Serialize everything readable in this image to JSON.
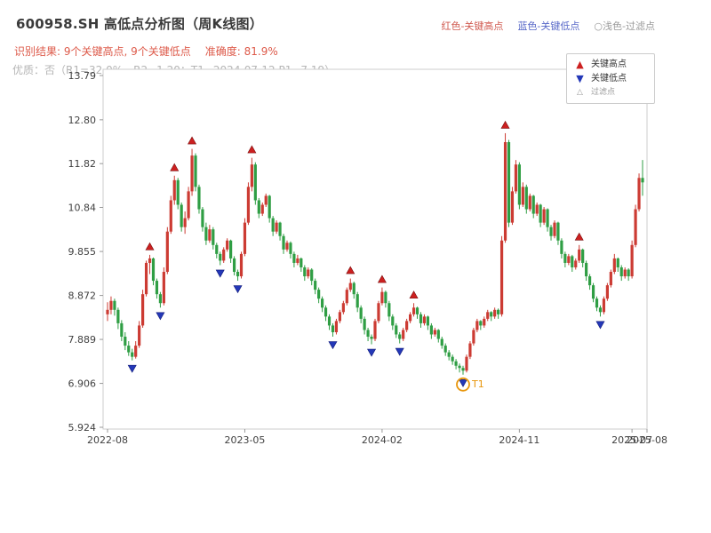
{
  "header": {
    "title": "600958.SH 高低点分析图（周K线图）",
    "legend_high": "红色-关键高点",
    "legend_low": "蓝色-关键低点",
    "legend_filter": "○浅色-过滤点",
    "result_text": "识别结果: 9个关键高点, 9个关键低点",
    "accuracy_text": "准确度: 81.9%",
    "quality_text": "优质：否（R1=32.0%，R2=1.20；T1=2024-07-12 P1=7.19）"
  },
  "chart_data": {
    "type": "candlestick",
    "title": "600958.SH 周K线",
    "ylim": [
      5.924,
      13.79
    ],
    "y_ticks": [
      "13.79",
      "12.80",
      "11.82",
      "10.84",
      "9.855",
      "8.872",
      "7.889",
      "6.906",
      "5.924"
    ],
    "x_ticks": [
      {
        "index": 0,
        "label": "2022-08"
      },
      {
        "index": 39,
        "label": "2023-05"
      },
      {
        "index": 78,
        "label": "2024-02"
      },
      {
        "index": 117,
        "label": "2024-11"
      },
      {
        "index": 149,
        "label": "2025-07"
      },
      {
        "index": 156,
        "label": "2025-08"
      }
    ],
    "legend": {
      "high": "关键高点",
      "low": "关键低点",
      "filter": "过滤点"
    },
    "colors": {
      "up": "#cc3b33",
      "down": "#2f9e44",
      "marker_high": "#cc2020",
      "marker_low": "#2438b8",
      "t1": "#e8960c",
      "frame": "#cccccc",
      "tick": "#999999",
      "tick_text": "#3f3f3f"
    },
    "candles": [
      [
        8.45,
        8.72,
        8.3,
        8.55
      ],
      [
        8.55,
        8.85,
        8.45,
        8.75
      ],
      [
        8.75,
        8.8,
        8.42,
        8.55
      ],
      [
        8.55,
        8.6,
        8.12,
        8.25
      ],
      [
        8.25,
        8.32,
        7.85,
        7.95
      ],
      [
        7.95,
        8.05,
        7.65,
        7.75
      ],
      [
        7.75,
        7.85,
        7.52,
        7.6
      ],
      [
        7.6,
        7.68,
        7.42,
        7.5
      ],
      [
        7.5,
        7.85,
        7.46,
        7.75
      ],
      [
        7.75,
        8.3,
        7.7,
        8.2
      ],
      [
        8.2,
        9.0,
        8.15,
        8.9
      ],
      [
        8.9,
        9.65,
        8.85,
        9.6
      ],
      [
        9.6,
        9.78,
        9.35,
        9.7
      ],
      [
        9.7,
        9.72,
        9.1,
        9.2
      ],
      [
        9.2,
        9.25,
        8.8,
        8.9
      ],
      [
        8.9,
        8.95,
        8.6,
        8.7
      ],
      [
        8.7,
        9.5,
        8.65,
        9.4
      ],
      [
        9.4,
        10.4,
        9.35,
        10.3
      ],
      [
        10.3,
        11.1,
        10.25,
        11.0
      ],
      [
        11.0,
        11.55,
        10.9,
        11.45
      ],
      [
        11.45,
        11.5,
        10.8,
        10.9
      ],
      [
        10.9,
        10.95,
        10.3,
        10.4
      ],
      [
        10.4,
        10.75,
        10.25,
        10.6
      ],
      [
        10.6,
        11.3,
        10.55,
        11.2
      ],
      [
        11.2,
        12.15,
        11.1,
        12.0
      ],
      [
        12.0,
        12.05,
        11.2,
        11.3
      ],
      [
        11.3,
        11.35,
        10.7,
        10.8
      ],
      [
        10.8,
        10.85,
        10.3,
        10.4
      ],
      [
        10.4,
        10.5,
        10.0,
        10.1
      ],
      [
        10.1,
        10.45,
        10.05,
        10.35
      ],
      [
        10.35,
        10.4,
        9.9,
        10.0
      ],
      [
        10.0,
        10.05,
        9.7,
        9.8
      ],
      [
        9.8,
        9.85,
        9.55,
        9.65
      ],
      [
        9.65,
        9.95,
        9.6,
        9.9
      ],
      [
        9.9,
        10.15,
        9.85,
        10.1
      ],
      [
        10.1,
        10.12,
        9.6,
        9.7
      ],
      [
        9.7,
        9.75,
        9.32,
        9.4
      ],
      [
        9.4,
        9.45,
        9.2,
        9.3
      ],
      [
        9.3,
        9.85,
        9.25,
        9.8
      ],
      [
        9.8,
        10.6,
        9.75,
        10.5
      ],
      [
        10.5,
        11.4,
        10.45,
        11.3
      ],
      [
        11.3,
        11.95,
        11.2,
        11.8
      ],
      [
        11.8,
        11.85,
        10.9,
        11.0
      ],
      [
        11.0,
        11.05,
        10.6,
        10.7
      ],
      [
        10.7,
        10.95,
        10.65,
        10.9
      ],
      [
        10.9,
        11.15,
        10.85,
        11.1
      ],
      [
        11.1,
        11.12,
        10.5,
        10.6
      ],
      [
        10.6,
        10.65,
        10.2,
        10.3
      ],
      [
        10.3,
        10.55,
        10.25,
        10.5
      ],
      [
        10.5,
        10.52,
        10.1,
        10.2
      ],
      [
        10.2,
        10.25,
        9.8,
        9.9
      ],
      [
        9.9,
        10.1,
        9.85,
        10.05
      ],
      [
        10.05,
        10.08,
        9.7,
        9.8
      ],
      [
        9.8,
        9.85,
        9.5,
        9.6
      ],
      [
        9.6,
        9.78,
        9.55,
        9.7
      ],
      [
        9.7,
        9.72,
        9.4,
        9.5
      ],
      [
        9.5,
        9.55,
        9.2,
        9.3
      ],
      [
        9.3,
        9.5,
        9.25,
        9.45
      ],
      [
        9.45,
        9.48,
        9.1,
        9.2
      ],
      [
        9.2,
        9.25,
        8.9,
        9.0
      ],
      [
        9.0,
        9.05,
        8.7,
        8.8
      ],
      [
        8.8,
        8.85,
        8.5,
        8.6
      ],
      [
        8.6,
        8.65,
        8.3,
        8.4
      ],
      [
        8.4,
        8.45,
        8.1,
        8.2
      ],
      [
        8.2,
        8.25,
        7.95,
        8.05
      ],
      [
        8.05,
        8.35,
        8.0,
        8.3
      ],
      [
        8.3,
        8.55,
        8.25,
        8.5
      ],
      [
        8.5,
        8.75,
        8.45,
        8.7
      ],
      [
        8.7,
        9.05,
        8.65,
        9.0
      ],
      [
        9.0,
        9.25,
        8.95,
        9.15
      ],
      [
        9.15,
        9.18,
        8.8,
        8.9
      ],
      [
        8.9,
        8.95,
        8.5,
        8.6
      ],
      [
        8.6,
        8.65,
        8.25,
        8.35
      ],
      [
        8.35,
        8.4,
        8.0,
        8.1
      ],
      [
        8.1,
        8.15,
        7.85,
        7.95
      ],
      [
        7.95,
        8.0,
        7.78,
        7.9
      ],
      [
        7.9,
        8.35,
        7.85,
        8.3
      ],
      [
        8.3,
        8.75,
        8.25,
        8.7
      ],
      [
        8.7,
        9.05,
        8.65,
        8.95
      ],
      [
        8.95,
        8.98,
        8.6,
        8.7
      ],
      [
        8.7,
        8.75,
        8.3,
        8.4
      ],
      [
        8.4,
        8.45,
        8.1,
        8.2
      ],
      [
        8.2,
        8.25,
        7.92,
        8.0
      ],
      [
        8.0,
        8.05,
        7.8,
        7.9
      ],
      [
        7.9,
        8.15,
        7.85,
        8.1
      ],
      [
        8.1,
        8.35,
        8.05,
        8.3
      ],
      [
        8.3,
        8.5,
        8.25,
        8.45
      ],
      [
        8.45,
        8.7,
        8.4,
        8.6
      ],
      [
        8.6,
        8.62,
        8.35,
        8.45
      ],
      [
        8.45,
        8.5,
        8.15,
        8.25
      ],
      [
        8.25,
        8.45,
        8.2,
        8.4
      ],
      [
        8.4,
        8.42,
        8.1,
        8.2
      ],
      [
        8.2,
        8.25,
        7.9,
        8.0
      ],
      [
        8.0,
        8.15,
        7.95,
        8.1
      ],
      [
        8.1,
        8.12,
        7.82,
        7.9
      ],
      [
        7.9,
        7.95,
        7.68,
        7.75
      ],
      [
        7.75,
        7.8,
        7.52,
        7.6
      ],
      [
        7.6,
        7.65,
        7.42,
        7.5
      ],
      [
        7.5,
        7.55,
        7.32,
        7.4
      ],
      [
        7.4,
        7.45,
        7.22,
        7.3
      ],
      [
        7.3,
        7.35,
        7.15,
        7.25
      ],
      [
        7.25,
        7.3,
        7.1,
        7.19
      ],
      [
        7.19,
        7.55,
        7.15,
        7.5
      ],
      [
        7.5,
        7.85,
        7.45,
        7.8
      ],
      [
        7.8,
        8.15,
        7.75,
        8.1
      ],
      [
        8.1,
        8.35,
        8.05,
        8.3
      ],
      [
        8.3,
        8.32,
        8.1,
        8.2
      ],
      [
        8.2,
        8.4,
        8.15,
        8.35
      ],
      [
        8.35,
        8.55,
        8.3,
        8.5
      ],
      [
        8.5,
        8.52,
        8.3,
        8.4
      ],
      [
        8.4,
        8.6,
        8.35,
        8.55
      ],
      [
        8.55,
        8.58,
        8.35,
        8.45
      ],
      [
        8.45,
        10.2,
        8.4,
        10.1
      ],
      [
        10.1,
        12.5,
        10.05,
        12.3
      ],
      [
        12.3,
        12.35,
        10.4,
        10.5
      ],
      [
        10.5,
        11.3,
        10.45,
        11.2
      ],
      [
        11.2,
        11.9,
        11.15,
        11.8
      ],
      [
        11.8,
        11.85,
        10.8,
        10.9
      ],
      [
        10.9,
        11.4,
        10.85,
        11.3
      ],
      [
        11.3,
        11.35,
        10.7,
        10.8
      ],
      [
        10.8,
        11.15,
        10.75,
        11.1
      ],
      [
        11.1,
        11.12,
        10.6,
        10.7
      ],
      [
        10.7,
        10.95,
        10.65,
        10.9
      ],
      [
        10.9,
        10.92,
        10.4,
        10.5
      ],
      [
        10.5,
        10.85,
        10.45,
        10.8
      ],
      [
        10.8,
        10.82,
        10.3,
        10.4
      ],
      [
        10.4,
        10.45,
        10.1,
        10.2
      ],
      [
        10.2,
        10.55,
        10.15,
        10.5
      ],
      [
        10.5,
        10.52,
        10.0,
        10.1
      ],
      [
        10.1,
        10.15,
        9.7,
        9.8
      ],
      [
        9.8,
        9.85,
        9.5,
        9.6
      ],
      [
        9.6,
        9.8,
        9.55,
        9.75
      ],
      [
        9.75,
        9.78,
        9.4,
        9.5
      ],
      [
        9.5,
        9.7,
        9.45,
        9.65
      ],
      [
        9.65,
        10.0,
        9.6,
        9.9
      ],
      [
        9.9,
        9.92,
        9.5,
        9.6
      ],
      [
        9.6,
        9.65,
        9.2,
        9.3
      ],
      [
        9.3,
        9.35,
        9.0,
        9.1
      ],
      [
        9.1,
        9.15,
        8.72,
        8.8
      ],
      [
        8.8,
        8.85,
        8.52,
        8.6
      ],
      [
        8.6,
        8.65,
        8.4,
        8.5
      ],
      [
        8.5,
        8.85,
        8.45,
        8.8
      ],
      [
        8.8,
        9.15,
        8.75,
        9.1
      ],
      [
        9.1,
        9.45,
        9.05,
        9.4
      ],
      [
        9.4,
        9.8,
        9.35,
        9.7
      ],
      [
        9.7,
        9.72,
        9.4,
        9.5
      ],
      [
        9.5,
        9.55,
        9.2,
        9.3
      ],
      [
        9.3,
        9.5,
        9.25,
        9.45
      ],
      [
        9.45,
        9.48,
        9.2,
        9.3
      ],
      [
        9.3,
        10.1,
        9.25,
        10.0
      ],
      [
        10.0,
        10.9,
        9.95,
        10.8
      ],
      [
        10.8,
        11.6,
        10.75,
        11.5
      ],
      [
        11.5,
        11.9,
        11.1,
        11.4
      ]
    ],
    "key_highs": [
      {
        "index": 12,
        "price": 9.78
      },
      {
        "index": 19,
        "price": 11.55
      },
      {
        "index": 24,
        "price": 12.15
      },
      {
        "index": 41,
        "price": 11.95
      },
      {
        "index": 69,
        "price": 9.25
      },
      {
        "index": 78,
        "price": 9.05
      },
      {
        "index": 87,
        "price": 8.7
      },
      {
        "index": 113,
        "price": 12.5
      },
      {
        "index": 134,
        "price": 10.0
      }
    ],
    "key_lows": [
      {
        "index": 7,
        "price": 7.42
      },
      {
        "index": 15,
        "price": 8.6
      },
      {
        "index": 32,
        "price": 9.55
      },
      {
        "index": 37,
        "price": 9.2
      },
      {
        "index": 64,
        "price": 7.95
      },
      {
        "index": 75,
        "price": 7.78
      },
      {
        "index": 83,
        "price": 7.8
      },
      {
        "index": 101,
        "price": 7.1
      },
      {
        "index": 140,
        "price": 8.4
      }
    ],
    "t1_annotation": {
      "index": 101,
      "label": "T1",
      "date": "2024-07-12",
      "price": 7.19
    }
  }
}
